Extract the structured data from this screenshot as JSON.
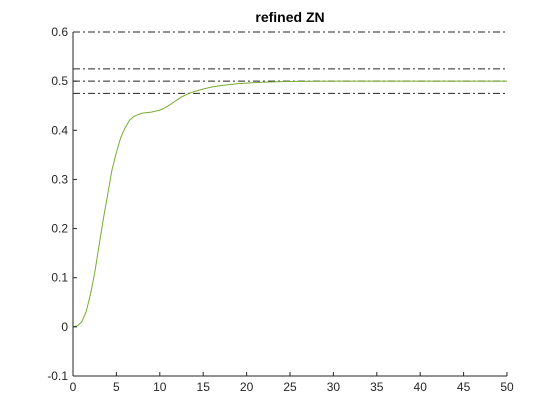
{
  "chart_data": {
    "type": "line",
    "title": "refined ZN",
    "xlabel": "",
    "ylabel": "",
    "xlim": [
      0,
      50
    ],
    "ylim": [
      -0.1,
      0.6
    ],
    "x_ticks": [
      0,
      5,
      10,
      15,
      20,
      25,
      30,
      35,
      40,
      45,
      50
    ],
    "y_ticks": [
      -0.1,
      0,
      0.1,
      0.2,
      0.3,
      0.4,
      0.5,
      0.6
    ],
    "x_tick_labels": [
      "0",
      "5",
      "10",
      "15",
      "20",
      "25",
      "30",
      "35",
      "40",
      "45",
      "50"
    ],
    "y_tick_labels": [
      "-0.1",
      "0",
      "0.1",
      "0.2",
      "0.3",
      "0.4",
      "0.5",
      "0.6"
    ],
    "grid": false,
    "series": [
      {
        "color": "#77ac30",
        "style": "solid",
        "x": [
          0,
          0.5,
          1,
          1.5,
          2,
          2.5,
          3,
          3.5,
          4,
          4.5,
          5,
          5.5,
          6,
          6.5,
          7,
          7.5,
          8,
          8.5,
          9,
          9.5,
          10,
          10.5,
          11,
          11.5,
          12,
          12.5,
          13,
          13.5,
          14,
          15,
          16,
          17,
          18,
          19,
          20,
          22,
          24,
          26,
          28,
          30,
          32,
          34,
          36,
          38,
          40,
          42,
          44,
          46,
          48,
          50
        ],
        "y": [
          0,
          0.002,
          0.01,
          0.03,
          0.065,
          0.11,
          0.165,
          0.22,
          0.27,
          0.32,
          0.355,
          0.385,
          0.405,
          0.42,
          0.428,
          0.432,
          0.435,
          0.436,
          0.437,
          0.439,
          0.441,
          0.445,
          0.45,
          0.456,
          0.462,
          0.468,
          0.472,
          0.476,
          0.479,
          0.484,
          0.488,
          0.491,
          0.493,
          0.495,
          0.496,
          0.498,
          0.499,
          0.4995,
          0.4998,
          0.5,
          0.5,
          0.5,
          0.5,
          0.5,
          0.5,
          0.5,
          0.5,
          0.5,
          0.5,
          0.5
        ]
      }
    ],
    "reference_lines": [
      {
        "y": 0.6,
        "color": "#262626",
        "style": "dash-dot"
      },
      {
        "y": 0.525,
        "color": "#262626",
        "style": "dash-dot"
      },
      {
        "y": 0.5,
        "color": "#262626",
        "style": "dash-dot"
      },
      {
        "y": 0.475,
        "color": "#262626",
        "style": "dash-dot"
      }
    ]
  }
}
